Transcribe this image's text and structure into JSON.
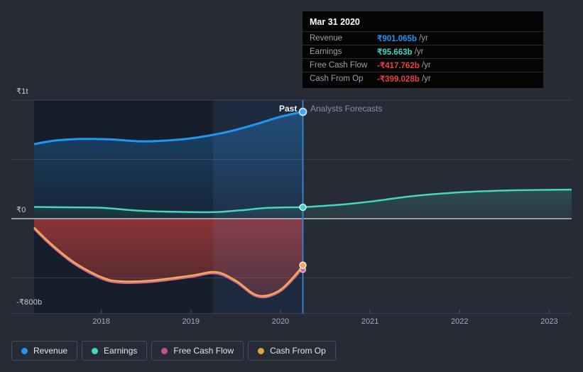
{
  "tooltip": {
    "title": "Mar 31 2020",
    "rows": [
      {
        "label": "Revenue",
        "value": "₹901.065b",
        "suffix": " /yr",
        "color": "#2196f3"
      },
      {
        "label": "Earnings",
        "value": "₹95.663b",
        "suffix": " /yr",
        "color": "#45d5c0"
      },
      {
        "label": "Free Cash Flow",
        "value": "-₹417.762b",
        "suffix": " /yr",
        "color": "#e8423a"
      },
      {
        "label": "Cash From Op",
        "value": "-₹399.028b",
        "suffix": " /yr",
        "color": "#e8423a"
      }
    ]
  },
  "annotations": {
    "past": "Past",
    "forecast": "Analysts Forecasts"
  },
  "y_axis": [
    "₹1t",
    "₹0",
    "-₹800b"
  ],
  "x_axis": [
    "2018",
    "2019",
    "2020",
    "2021",
    "2022",
    "2023"
  ],
  "legend": [
    {
      "label": "Revenue",
      "color": "#2196f3"
    },
    {
      "label": "Earnings",
      "color": "#45d5c0"
    },
    {
      "label": "Free Cash Flow",
      "color": "#c9518f"
    },
    {
      "label": "Cash From Op",
      "color": "#e2a33d"
    }
  ],
  "chart_data": {
    "type": "area",
    "title": "Past performance and analysts forecasts (₹ billions per year)",
    "x_unit": "year",
    "x_range": [
      2017.25,
      2023.25
    ],
    "x_ticks": [
      2018,
      2019,
      2020,
      2021,
      2022,
      2023
    ],
    "y_unit": "₹ billions /yr",
    "y_range": [
      -800,
      1000
    ],
    "y_gridlines_major": [
      1000,
      0,
      -800
    ],
    "y_gridlines_minor": [
      500,
      -500
    ],
    "divider_x": 2020.25,
    "divider_label": "Mar 31 2020",
    "highlight_band_x": [
      2019.25,
      2020.25
    ],
    "legend_position": "bottom",
    "series": [
      {
        "name": "Revenue",
        "region": "past",
        "color": "#2196f3",
        "x": [
          2017.25,
          2017.5,
          2017.8,
          2018.1,
          2018.45,
          2018.75,
          2019.0,
          2019.25,
          2019.5,
          2019.75,
          2020.0,
          2020.25
        ],
        "values": [
          629,
          660,
          673,
          668,
          652,
          660,
          677,
          707,
          749,
          802,
          860,
          901.065
        ]
      },
      {
        "name": "Earnings",
        "region": "past",
        "color": "#45d5c0",
        "x": [
          2017.25,
          2017.6,
          2018.0,
          2018.4,
          2018.8,
          2019.25,
          2019.55,
          2019.8,
          2020.05,
          2020.25
        ],
        "values": [
          99,
          96,
          92,
          68,
          58,
          55,
          70,
          88,
          95,
          95.663
        ]
      },
      {
        "name": "Earnings Forecast",
        "region": "forecast",
        "color": "#45d5c0",
        "x": [
          2020.25,
          2020.7,
          2021.0,
          2021.5,
          2022.0,
          2022.5,
          2023.0,
          2023.25
        ],
        "values": [
          95.663,
          120,
          144,
          192,
          222,
          237,
          243,
          245
        ]
      },
      {
        "name": "Free Cash Flow",
        "region": "past",
        "color": "#d4689f",
        "x": [
          2017.25,
          2017.45,
          2017.7,
          2018.0,
          2018.2,
          2018.55,
          2019.0,
          2019.28,
          2019.5,
          2019.75,
          2020.0,
          2020.25
        ],
        "values": [
          -87,
          -233,
          -383,
          -505,
          -540,
          -535,
          -492,
          -462,
          -535,
          -660,
          -612,
          -417.762
        ]
      },
      {
        "name": "Cash From Op",
        "region": "past",
        "color": "#f0ab4d",
        "x": [
          2017.25,
          2017.45,
          2017.7,
          2018.0,
          2018.2,
          2018.55,
          2019.0,
          2019.28,
          2019.5,
          2019.75,
          2020.0,
          2020.25
        ],
        "values": [
          -75,
          -220,
          -370,
          -492,
          -527,
          -522,
          -480,
          -450,
          -522,
          -648,
          -599,
          -399.028
        ]
      }
    ]
  }
}
